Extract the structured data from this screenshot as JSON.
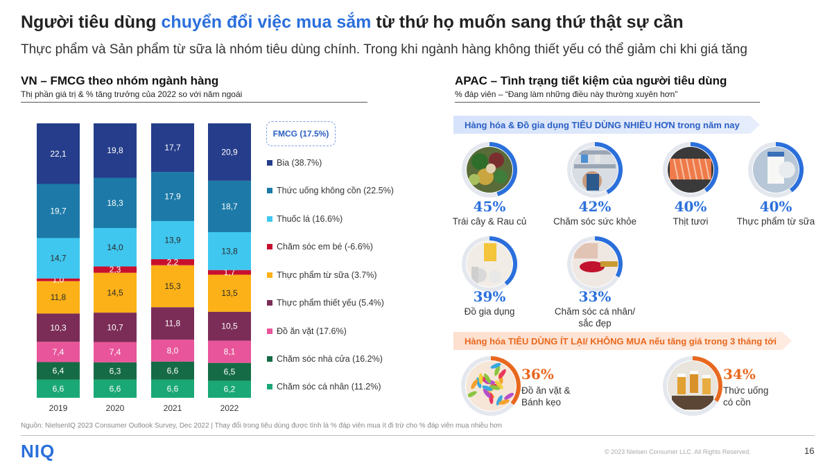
{
  "header": {
    "title_pre": "Người tiêu dùng ",
    "title_highlight": "chuyển đổi việc mua sắm",
    "title_post": " từ thứ họ muốn sang thứ thật sự cần",
    "subtitle": "Thực phẩm và Sản phẩm từ sữa là nhóm tiêu dùng chính. Trong khi ngành hàng không thiết yếu có thể giảm chi khi giá tăng"
  },
  "left_section": {
    "title": "VN – FMCG theo nhóm ngành hàng",
    "subtitle": "Thị phần giá trị & % tăng trưởng của 2022 so với năm ngoái",
    "fmcg_box": "FMCG (17.5%)"
  },
  "chart_data": {
    "type": "bar",
    "stacked": true,
    "categories": [
      "2019",
      "2020",
      "2021",
      "2022"
    ],
    "series": [
      {
        "name": "Chăm sóc cá nhân (11.2%)",
        "color": "#1aa876",
        "values": [
          6.6,
          6.6,
          6.6,
          6.2
        ]
      },
      {
        "name": "Chăm sóc nhà cửa (16.2%)",
        "color": "#156b45",
        "values": [
          6.4,
          6.3,
          6.6,
          6.5
        ]
      },
      {
        "name": "Đồ ăn vặt (17.6%)",
        "color": "#e8559a",
        "values": [
          7.4,
          7.4,
          8.0,
          8.1
        ]
      },
      {
        "name": "Thực phẩm thiết yếu (5.4%)",
        "color": "#7b2d57",
        "values": [
          10.3,
          10.7,
          11.8,
          10.5
        ]
      },
      {
        "name": "Thực phẩm từ sữa (3.7%)",
        "color": "#fbb117",
        "values": [
          11.8,
          14.5,
          15.3,
          13.5
        ]
      },
      {
        "name": "Chăm sóc em bé (-6.6%)",
        "color": "#c8102e",
        "values": [
          1.0,
          2.3,
          2.2,
          1.7
        ]
      },
      {
        "name": "Thuốc lá (16.6%)",
        "color": "#3fc7ef",
        "values": [
          14.7,
          14.0,
          13.9,
          13.8
        ]
      },
      {
        "name": "Thức uống không cồn (22.5%)",
        "color": "#1d7aa8",
        "values": [
          19.7,
          18.3,
          17.9,
          18.7
        ]
      },
      {
        "name": "Bia (38.7%)",
        "color": "#253d8a",
        "values": [
          22.1,
          19.8,
          17.7,
          20.9
        ]
      }
    ],
    "value_labels": [
      [
        "6,6",
        "6,6",
        "6,6",
        "6,2"
      ],
      [
        "6,4",
        "6,3",
        "6,6",
        "6,5"
      ],
      [
        "7,4",
        "7,4",
        "8,0",
        "8,1"
      ],
      [
        "10,3",
        "10,7",
        "11,8",
        "10,5"
      ],
      [
        "11,8",
        "14,5",
        "15,3",
        "13,5"
      ],
      [
        "1,0",
        "2,3",
        "2,2",
        "1,7"
      ],
      [
        "14,7",
        "14,0",
        "13,9",
        "13,8"
      ],
      [
        "19,7",
        "18,3",
        "17,9",
        "18,7"
      ],
      [
        "22,1",
        "19,8",
        "17,7",
        "20,9"
      ]
    ],
    "ylim": [
      0,
      100
    ]
  },
  "right_section": {
    "title": "APAC – Tình trạng tiết kiệm của người tiêu dùng",
    "subtitle": "% đáp viên  – “Đang làm những điều này thường xuyên hơn”",
    "banner_more": "Hàng hóa & Đồ gia dụng TIÊU DÙNG NHIỀU HƠN trong năm nay",
    "banner_less": "Hàng hóa TIÊU DÙNG ÍT LẠI/ KHÔNG MUA nếu tăng giá trong 3 tháng tới",
    "more_items": [
      {
        "pct": "45%",
        "value": 45,
        "label": "Trái cây & Rau củ",
        "icon": "vegetables-photo"
      },
      {
        "pct": "42%",
        "value": 42,
        "label": "Chăm sóc sức khỏe",
        "icon": "pharmacy-photo"
      },
      {
        "pct": "40%",
        "value": 40,
        "label": "Thịt tươi",
        "icon": "salmon-photo"
      },
      {
        "pct": "40%",
        "value": 40,
        "label": "Thực phẩm từ sữa",
        "icon": "milk-photo"
      },
      {
        "pct": "39%",
        "value": 39,
        "label": "Đồ gia dụng",
        "icon": "household-photo"
      },
      {
        "pct": "33%",
        "value": 33,
        "label1": "Chăm sóc cá nhân/",
        "label2": "sắc đẹp",
        "icon": "lipstick-photo"
      }
    ],
    "less_items": [
      {
        "pct": "36%",
        "value": 36,
        "label1": "Đồ ăn vặt &",
        "label2": "Bánh kẹo",
        "icon": "candy-photo"
      },
      {
        "pct": "34%",
        "value": 34,
        "label1": "Thức uống",
        "label2": "có cồn",
        "icon": "beer-toast-photo"
      }
    ],
    "colors": {
      "blue": "#2a6fdb",
      "orange": "#e8681e"
    }
  },
  "footer": {
    "source": "Nguồn: NielsenIQ 2023 Consumer Outlook Survey, Dec 2022 | Thay đổi trong tiêu dùng được tính là % đáp viên mua ít đi trừ cho % đáp viên mua nhiều hơn",
    "logo": "NIQ",
    "copyright": "© 2023 Nielsen Consumer LLC. All Rights Reserved.",
    "page": "16"
  }
}
